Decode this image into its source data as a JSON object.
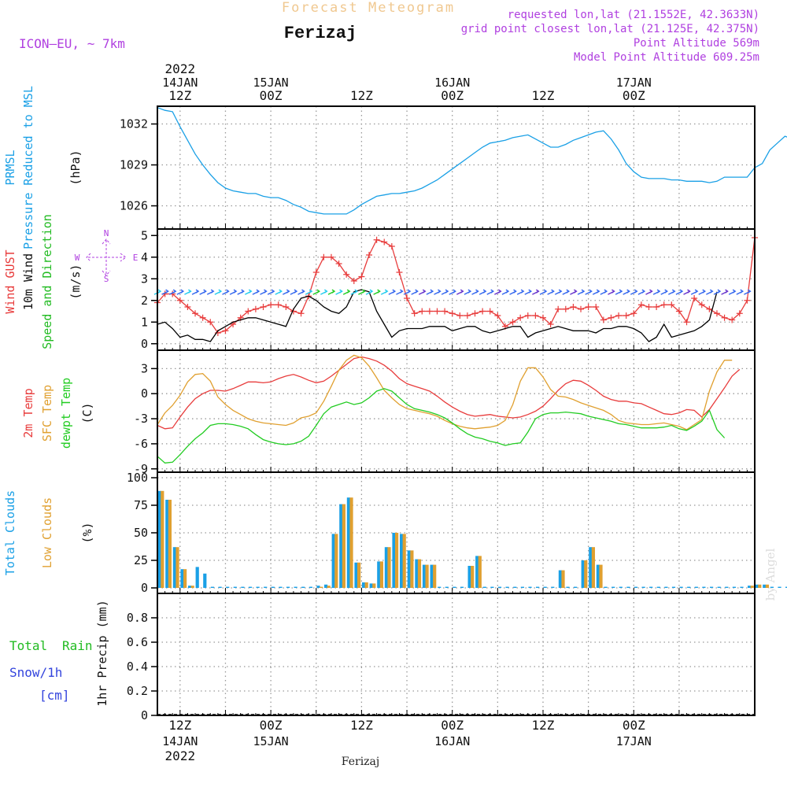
{
  "header": {
    "product": "Forecast Meteogram",
    "location": "Ferizaj",
    "model": "ICON—EU, ~ 7km",
    "requested": "requested lon,lat (21.1552E, 42.3633N)",
    "grid_point": "grid point closest lon,lat (21.125E, 42.375N)",
    "point_altitude": "Point Altitude 569m",
    "model_altitude": "Model Point Altitude 609.25m",
    "credit": "by Angel",
    "footer_location": "Ferizaj"
  },
  "colors": {
    "pressure": "#1aa0e6",
    "gust": "#e83c3c",
    "wind": "#000000",
    "direction": "#22bb22",
    "temp2m": "#e83c3c",
    "sfc": "#e0a030",
    "dewpt": "#22cc22",
    "total_clouds": "#1aa0e6",
    "low_clouds": "#e0a030",
    "rain": "#22bb22",
    "snow": "#3344dd",
    "compass": "#b040e0",
    "header_purple": "#b040e0"
  },
  "chart_data": {
    "x_start": "2022-01-14 06Z",
    "x_end": "2022-01-17 18Z",
    "x_step_hours": 1,
    "top_axis": [
      {
        "year": "2022",
        "date": "14JAN",
        "time": "12Z"
      },
      {
        "date": "15JAN",
        "time": "00Z"
      },
      {
        "time": "12Z"
      },
      {
        "date": "16JAN",
        "time": "00Z"
      },
      {
        "time": "12Z"
      },
      {
        "date": "17JAN",
        "time": "00Z"
      }
    ],
    "bottom_axis": [
      {
        "time": "12Z",
        "date": "14JAN",
        "year": "2022"
      },
      {
        "time": "00Z",
        "date": "15JAN"
      },
      {
        "time": "12Z"
      },
      {
        "time": "00Z",
        "date": "16JAN"
      },
      {
        "time": "12Z"
      },
      {
        "time": "00Z",
        "date": "17JAN"
      }
    ],
    "panels": [
      {
        "id": "pressure",
        "type": "line",
        "labels": [
          "PRMSL",
          "Pressure Reduced to MSL"
        ],
        "unit": "(hPa)",
        "ylim": [
          1024.3,
          1033.3
        ],
        "yticks": [
          1026,
          1029,
          1032
        ],
        "series": [
          {
            "color_key": "pressure",
            "values": [
              1033.2,
              1033.0,
              1032.9,
              1031.8,
              1030.8,
              1029.8,
              1029.0,
              1028.3,
              1027.7,
              1027.3,
              1027.1,
              1027.0,
              1026.9,
              1026.9,
              1026.7,
              1026.6,
              1026.6,
              1026.4,
              1026.1,
              1025.9,
              1025.6,
              1025.5,
              1025.4,
              1025.4,
              1025.4,
              1025.4,
              1025.7,
              1026.1,
              1026.4,
              1026.7,
              1026.8,
              1026.9,
              1026.9,
              1027.0,
              1027.1,
              1027.3,
              1027.6,
              1027.9,
              1028.3,
              1028.7,
              1029.1,
              1029.5,
              1029.9,
              1030.3,
              1030.6,
              1030.7,
              1030.8,
              1031.0,
              1031.1,
              1031.2,
              1030.9,
              1030.6,
              1030.3,
              1030.3,
              1030.5,
              1030.8,
              1031.0,
              1031.2,
              1031.4,
              1031.5,
              1030.9,
              1030.1,
              1029.1,
              1028.5,
              1028.1,
              1028.0,
              1028.0,
              1028.0,
              1027.9,
              1027.9,
              1027.8,
              1027.8,
              1027.8,
              1027.7,
              1027.8,
              1028.1,
              1028.1,
              1028.1,
              1028.1,
              1028.8,
              1029.1,
              1030.1,
              1030.6,
              1031.1,
              1030.9,
              1030.6,
              1030.0
            ]
          }
        ]
      },
      {
        "id": "wind",
        "type": "line",
        "labels": [
          "Wind GUST",
          "10m Wind",
          "Speed and Direction"
        ],
        "unit": "(m/s)",
        "ylim": [
          -0.3,
          5.3
        ],
        "yticks": [
          0,
          1,
          2,
          3,
          4,
          5
        ],
        "compass": {
          "n": "N",
          "s": "S",
          "w": "W",
          "e": "E"
        },
        "series": [
          {
            "name": "Wind GUST",
            "color_key": "gust",
            "marker": "plus",
            "values": [
              1.9,
              2.3,
              2.3,
              2.0,
              1.7,
              1.4,
              1.2,
              1.0,
              0.5,
              0.6,
              0.9,
              1.2,
              1.5,
              1.6,
              1.7,
              1.8,
              1.8,
              1.7,
              1.5,
              1.4,
              2.2,
              3.3,
              4.0,
              4.0,
              3.7,
              3.2,
              2.9,
              3.1,
              4.1,
              4.8,
              4.7,
              4.5,
              3.3,
              2.1,
              1.4,
              1.5,
              1.5,
              1.5,
              1.5,
              1.4,
              1.3,
              1.3,
              1.4,
              1.5,
              1.5,
              1.3,
              0.8,
              1.0,
              1.2,
              1.3,
              1.3,
              1.2,
              0.9,
              1.6,
              1.6,
              1.7,
              1.6,
              1.7,
              1.7,
              1.1,
              1.2,
              1.3,
              1.3,
              1.4,
              1.8,
              1.7,
              1.7,
              1.8,
              1.8,
              1.5,
              1.0,
              2.1,
              1.8,
              1.6,
              1.4,
              1.2,
              1.1,
              1.4,
              2.0,
              4.9
            ]
          },
          {
            "name": "10m Wind",
            "color_key": "wind",
            "values": [
              0.9,
              1.0,
              0.7,
              0.3,
              0.4,
              0.2,
              0.2,
              0.1,
              0.6,
              0.8,
              1.0,
              1.1,
              1.2,
              1.2,
              1.1,
              1.0,
              0.9,
              0.8,
              1.6,
              2.1,
              2.2,
              2.0,
              1.7,
              1.5,
              1.4,
              1.7,
              2.4,
              2.5,
              2.4,
              1.5,
              0.9,
              0.3,
              0.6,
              0.7,
              0.7,
              0.7,
              0.8,
              0.8,
              0.8,
              0.6,
              0.7,
              0.8,
              0.8,
              0.6,
              0.5,
              0.6,
              0.7,
              0.8,
              0.8,
              0.3,
              0.5,
              0.6,
              0.7,
              0.8,
              0.7,
              0.6,
              0.6,
              0.6,
              0.5,
              0.7,
              0.7,
              0.8,
              0.8,
              0.7,
              0.5,
              0.1,
              0.3,
              0.9,
              0.3,
              0.4,
              0.5,
              0.6,
              0.8,
              1.1,
              2.4
            ]
          }
        ]
      },
      {
        "id": "temperature",
        "type": "line",
        "labels": [
          "2m Temp",
          "SFC Temp",
          "dewpt Temp"
        ],
        "unit": "(C)",
        "ylim": [
          -9.4,
          5.2
        ],
        "yticks": [
          -9,
          -6,
          -3,
          0,
          3
        ],
        "series": [
          {
            "name": "2m Temp",
            "color_key": "temp2m",
            "values": [
              -3.8,
              -4.2,
              -4.1,
              -2.8,
              -1.6,
              -0.6,
              0.0,
              0.4,
              0.4,
              0.3,
              0.6,
              1.0,
              1.4,
              1.4,
              1.3,
              1.4,
              1.8,
              2.1,
              2.3,
              2.0,
              1.6,
              1.3,
              1.5,
              2.1,
              2.8,
              3.5,
              4.2,
              4.4,
              4.2,
              3.9,
              3.4,
              2.7,
              1.8,
              1.2,
              0.9,
              0.6,
              0.3,
              -0.3,
              -1.0,
              -1.6,
              -2.1,
              -2.5,
              -2.7,
              -2.6,
              -2.5,
              -2.7,
              -2.8,
              -2.9,
              -2.8,
              -2.5,
              -2.1,
              -1.5,
              -0.6,
              0.4,
              1.2,
              1.6,
              1.5,
              1.0,
              0.4,
              -0.3,
              -0.7,
              -0.9,
              -0.9,
              -1.1,
              -1.2,
              -1.6,
              -2.0,
              -2.4,
              -2.5,
              -2.3,
              -1.9,
              -2.0,
              -2.8,
              -1.9,
              -0.6,
              0.7,
              2.1,
              2.9
            ]
          },
          {
            "name": "SFC Temp",
            "color_key": "sfc",
            "values": [
              -3.7,
              -2.3,
              -1.4,
              -0.2,
              1.4,
              2.3,
              2.4,
              1.5,
              -0.4,
              -1.3,
              -2.0,
              -2.5,
              -3.0,
              -3.3,
              -3.5,
              -3.6,
              -3.7,
              -3.8,
              -3.5,
              -2.9,
              -2.7,
              -2.3,
              -0.9,
              0.9,
              2.8,
              4.0,
              4.6,
              4.3,
              3.3,
              1.9,
              0.4,
              -0.5,
              -1.3,
              -1.8,
              -2.0,
              -2.2,
              -2.4,
              -2.7,
              -3.2,
              -3.6,
              -3.9,
              -4.1,
              -4.2,
              -4.1,
              -4.0,
              -3.8,
              -3.2,
              -1.3,
              1.5,
              3.1,
              3.1,
              2.0,
              0.5,
              -0.3,
              -0.4,
              -0.7,
              -1.1,
              -1.4,
              -1.7,
              -2.0,
              -2.5,
              -3.2,
              -3.5,
              -3.6,
              -3.7,
              -3.7,
              -3.6,
              -3.5,
              -3.7,
              -3.9,
              -4.3,
              -3.7,
              -3.1,
              0.3,
              2.6,
              4.0,
              4.0
            ]
          },
          {
            "name": "dewpt Temp",
            "color_key": "dewpt",
            "values": [
              -7.5,
              -8.3,
              -8.2,
              -7.3,
              -6.3,
              -5.4,
              -4.7,
              -3.8,
              -3.6,
              -3.6,
              -3.7,
              -3.9,
              -4.2,
              -4.9,
              -5.5,
              -5.8,
              -6.0,
              -6.1,
              -6.0,
              -5.7,
              -5.1,
              -3.8,
              -2.4,
              -1.6,
              -1.3,
              -1.0,
              -1.3,
              -1.1,
              -0.5,
              0.3,
              0.6,
              0.3,
              -0.5,
              -1.3,
              -1.8,
              -2.0,
              -2.2,
              -2.5,
              -2.9,
              -3.5,
              -4.2,
              -4.8,
              -5.2,
              -5.4,
              -5.7,
              -5.9,
              -6.2,
              -6.0,
              -5.9,
              -4.6,
              -3.0,
              -2.5,
              -2.3,
              -2.3,
              -2.2,
              -2.3,
              -2.4,
              -2.7,
              -2.9,
              -3.1,
              -3.3,
              -3.6,
              -3.7,
              -3.9,
              -4.1,
              -4.1,
              -4.1,
              -4.0,
              -3.8,
              -4.2,
              -4.4,
              -3.9,
              -3.3,
              -2.0,
              -4.3,
              -5.3
            ]
          }
        ]
      },
      {
        "id": "clouds",
        "type": "bar",
        "labels": [
          "Total Clouds",
          "Low Clouds"
        ],
        "unit": "(%)",
        "ylim": [
          -5,
          105
        ],
        "yticks": [
          0,
          25,
          50,
          75,
          100
        ],
        "series": [
          {
            "name": "Total Clouds",
            "color_key": "total_clouds",
            "values": [
              88,
              80,
              37,
              17,
              2,
              19,
              13,
              1,
              1,
              1,
              1,
              1,
              1,
              1,
              1,
              1,
              1,
              1,
              1,
              1,
              1,
              2,
              3,
              49,
              76,
              82,
              23,
              5,
              4,
              24,
              37,
              50,
              49,
              34,
              26,
              21,
              21,
              1,
              1,
              1,
              1,
              20,
              29,
              1,
              1,
              1,
              1,
              1,
              1,
              1,
              1,
              1,
              1,
              16,
              1,
              1,
              25,
              37,
              21,
              1,
              1,
              1,
              1,
              1,
              1,
              1,
              1,
              1,
              1,
              1,
              1,
              1,
              1,
              1,
              1,
              1,
              1,
              1,
              2,
              3,
              3,
              1,
              1,
              1,
              1,
              1,
              1,
              33,
              38
            ]
          },
          {
            "name": "Low Clouds",
            "color_key": "low_clouds",
            "values": [
              88,
              80,
              37,
              17,
              2,
              0,
              0,
              0,
              0,
              0,
              0,
              0,
              0,
              0,
              0,
              0,
              0,
              0,
              0,
              0,
              0,
              1,
              2,
              49,
              76,
              82,
              23,
              5,
              4,
              24,
              37,
              50,
              49,
              34,
              26,
              21,
              21,
              0,
              0,
              0,
              0,
              20,
              29,
              0,
              0,
              0,
              0,
              0,
              0,
              0,
              0,
              0,
              0,
              16,
              0,
              0,
              25,
              37,
              21,
              0,
              0,
              0,
              0,
              0,
              0,
              0,
              0,
              0,
              0,
              0,
              0,
              0,
              0,
              0,
              0,
              0,
              0,
              0,
              2,
              3,
              3,
              0,
              0,
              0,
              0,
              0,
              0,
              0,
              0
            ]
          }
        ]
      },
      {
        "id": "precip",
        "type": "bar",
        "labels": [
          "Total",
          "Rain",
          "Snow/1h",
          "[cm]"
        ],
        "unit": "1hr Precip (mm)",
        "ylim": [
          0,
          1.0
        ],
        "yticks": [
          0,
          0.2,
          0.4,
          0.6,
          0.8
        ],
        "series": [
          {
            "name": "Total",
            "color_key": "rain",
            "values": []
          },
          {
            "name": "Snow/1h",
            "color_key": "snow",
            "values": []
          }
        ]
      }
    ]
  }
}
